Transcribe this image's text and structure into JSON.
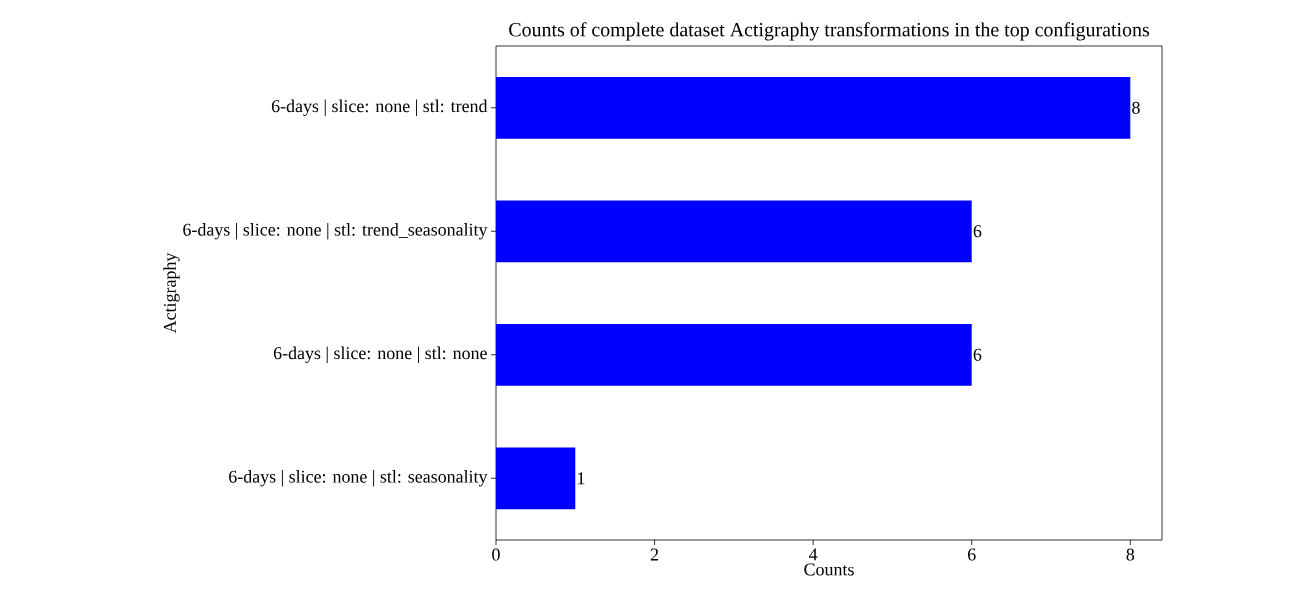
{
  "chart_data": {
    "type": "bar",
    "orientation": "horizontal",
    "title": "Counts of complete dataset Actigraphy transformations in the top configurations",
    "xlabel": "Counts",
    "ylabel": "Actigraphy",
    "categories": [
      "6-days | slice: none | stl: trend",
      "6-days | slice: none | stl: trend_seasonality",
      "6-days | slice: none | stl: none",
      "6-days | slice: none | stl: seasonality"
    ],
    "values": [
      8,
      6,
      6,
      1
    ],
    "color": "#0000ff",
    "xlim": [
      0,
      8.4
    ],
    "xticks": [
      0,
      2,
      4,
      6,
      8
    ],
    "data_labels": true
  }
}
